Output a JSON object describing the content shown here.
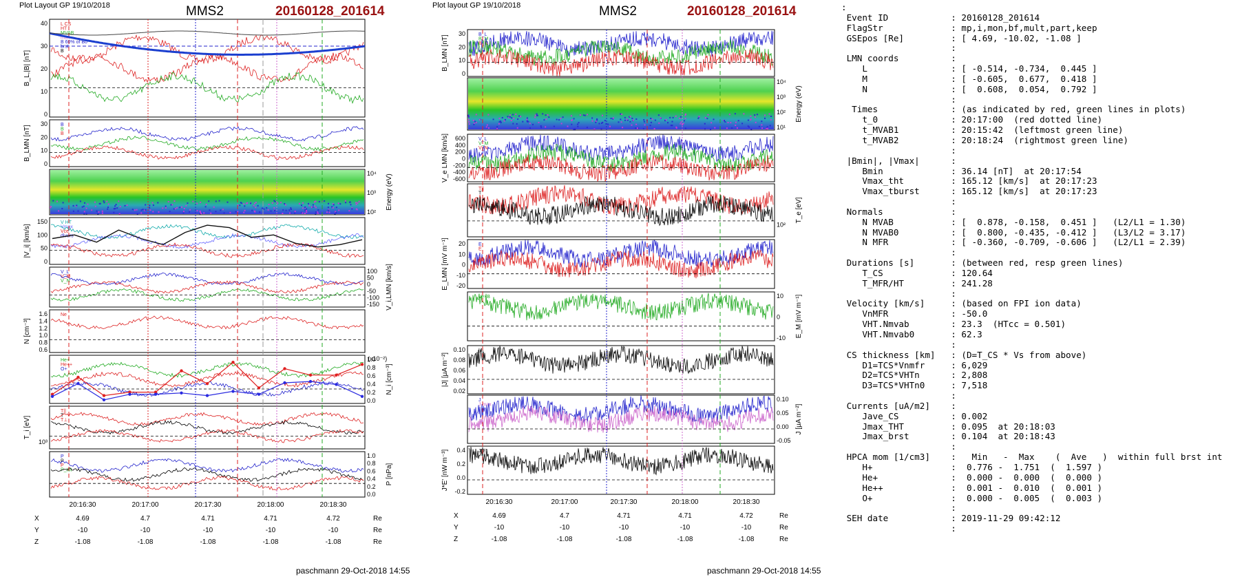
{
  "left_figure": {
    "layout_label": "Plot Layout GP 19/10/2018",
    "spacecraft": "MMS2",
    "event": "20160128_201614",
    "footer": "paschmann 29-Oct-2018 14:55",
    "panels": [
      {
        "id": "b_total",
        "ylabel": "B_L,|B| [nT]",
        "yticks": [
          "0",
          "10",
          "20",
          "30",
          "40"
        ],
        "legend": [
          "L CS",
          "HT",
          "MVAB",
          "max",
          "B 60% of Bo",
          "brst",
          "B"
        ],
        "legend_colors": [
          "#d22",
          "#d22",
          "#2a2",
          "#c6c",
          "#22c",
          "#22c",
          "#000"
        ]
      },
      {
        "id": "b_lmn",
        "ylabel": "B_LMN [nT]",
        "yticks": [
          "0",
          "10",
          "20",
          "30"
        ],
        "legend": [
          "B",
          "B",
          "B"
        ],
        "legend_colors": [
          "#22c",
          "#2a2",
          "#d22"
        ]
      },
      {
        "id": "ion_spec",
        "ylabel_right": "Energy (eV)",
        "yticks_right": [
          "10²",
          "10³",
          "10⁴"
        ]
      },
      {
        "id": "vi_mag",
        "ylabel": "|V_i| [km/s]",
        "yticks": [
          "0",
          "50",
          "100",
          "150"
        ],
        "legend": [
          "V HT",
          "Vmax",
          "Vce",
          "divers"
        ],
        "legend_colors": [
          "#1aa",
          "#66f",
          "#d22",
          "#22c"
        ]
      },
      {
        "id": "vi_lmn",
        "ylabel_right": "V_i,LMN [km/s]",
        "yticks_right": [
          "-150",
          "-100",
          "-50",
          "0",
          "50",
          "100"
        ],
        "legend": [
          "V_L",
          "V_M",
          "V_N"
        ],
        "legend_colors": [
          "#22c",
          "#d22",
          "#2a2"
        ]
      },
      {
        "id": "density",
        "ylabel": "N [cm⁻³]",
        "yticks": [
          "0.6",
          "0.8",
          "1.0",
          "1.2",
          "1.4",
          "1.6"
        ],
        "legend": [
          "Ne"
        ],
        "legend_colors": [
          "#d22"
        ]
      },
      {
        "id": "hpca",
        "ylabel_right": "N_i [cm⁻³]",
        "yticks_right": [
          "0.0",
          "0.2",
          "0.4",
          "0.6",
          "0.8",
          "1.0"
        ],
        "ymult": "(x10⁻²)",
        "legend": [
          "He+",
          "He++",
          "O+"
        ],
        "legend_colors": [
          "#2a2",
          "#d22",
          "#22c"
        ]
      },
      {
        "id": "ti",
        "ylabel": "T_i [eV]",
        "yticks": [
          "10³"
        ],
        "legend": [
          "T||",
          "T",
          "T⊥"
        ],
        "legend_colors": [
          "#d22",
          "#000",
          "#d22"
        ]
      },
      {
        "id": "pressure",
        "ylabel_right": "P [nPa]",
        "yticks_right": [
          "0.0",
          "0.2",
          "0.4",
          "0.6",
          "0.8",
          "1.0"
        ],
        "legend": [
          "P",
          "P",
          "P",
          "P_tot"
        ],
        "legend_colors": [
          "#22c",
          "#000",
          "#d22",
          "#2a2"
        ]
      }
    ],
    "time_ticks": [
      "20:16:30",
      "20:17:00",
      "20:17:30",
      "20:18:00",
      "20:18:30"
    ],
    "position_rows": [
      {
        "label": "X",
        "values": [
          "4.69",
          "4.7",
          "4.71",
          "4.71",
          "4.72"
        ],
        "unit": "Re"
      },
      {
        "label": "Y",
        "values": [
          "-10",
          "-10",
          "-10",
          "-10",
          "-10"
        ],
        "unit": "Re"
      },
      {
        "label": "Z",
        "values": [
          "-1.08",
          "-1.08",
          "-1.08",
          "-1.08",
          "-1.08"
        ],
        "unit": "Re"
      }
    ]
  },
  "right_figure": {
    "layout_label": "Plot layout GP 19/10/2018",
    "spacecraft": "MMS2",
    "event": "20160128_201614",
    "footer": "paschmann 29-Oct-2018 14:55",
    "panels": [
      {
        "id": "b_lmn",
        "ylabel": "B_LMN [nT]",
        "yticks": [
          "0",
          "10",
          "20",
          "30"
        ],
        "legend": [
          "B_L",
          "B_M",
          "B_N"
        ],
        "legend_colors": [
          "#22c",
          "#2a2",
          "#d22"
        ]
      },
      {
        "id": "e_spec",
        "ylabel_right": "Energy (eV)",
        "yticks_right": [
          "10¹",
          "10²",
          "10³",
          "10⁴"
        ]
      },
      {
        "id": "ve_lmn",
        "ylabel": "V_e LMN [km/s]",
        "yticks": [
          "-600",
          "-400",
          "-200",
          "0",
          "200",
          "400",
          "600"
        ],
        "legend": [
          "V_L",
          "V_M",
          "V_N"
        ],
        "legend_colors": [
          "#22c",
          "#2a2",
          "#d22"
        ]
      },
      {
        "id": "te",
        "ylabel_right": "T_e [eV]",
        "yticks_right": [
          "10²"
        ],
        "legend": [
          "T||",
          "T"
        ],
        "legend_colors": [
          "#d22",
          "#000"
        ]
      },
      {
        "id": "e_lmn",
        "ylabel": "E_LMN [mV m⁻¹]",
        "yticks": [
          "-20",
          "-10",
          "0",
          "10",
          "20"
        ],
        "legend": [
          "E",
          "E"
        ],
        "legend_colors": [
          "#22c",
          "#d22"
        ]
      },
      {
        "id": "em",
        "ylabel_right": "E_M [mV m⁻¹]",
        "yticks_right": [
          "-10",
          "0",
          "10"
        ],
        "legend": [
          "Ve×B"
        ],
        "legend_colors": [
          "#2a2"
        ]
      },
      {
        "id": "j_mag",
        "ylabel": "|J| [μA m⁻²]",
        "yticks": [
          "0.02",
          "0.04",
          "0.06",
          "0.08",
          "0.10"
        ],
        "legend": [
          "|J|"
        ],
        "legend_colors": [
          "#000"
        ]
      },
      {
        "id": "j_lmn",
        "ylabel_right": "J [μA m⁻²]",
        "yticks_right": [
          "-0.05",
          "0.00",
          "0.05",
          "0.10"
        ],
        "legend": [
          "J",
          "J max"
        ],
        "legend_colors": [
          "#22c",
          "#c6c"
        ]
      },
      {
        "id": "je",
        "ylabel": "J*E' [nW m⁻³]",
        "yticks": [
          "-0.2",
          "0.0",
          "0.2",
          "0.4"
        ],
        "legend": [
          "J*E'"
        ],
        "legend_colors": [
          "#000"
        ]
      }
    ],
    "time_ticks": [
      "20:16:30",
      "20:17:00",
      "20:17:30",
      "20:18:00",
      "20:18:30"
    ],
    "position_rows": [
      {
        "label": "X",
        "values": [
          "4.69",
          "4.7",
          "4.71",
          "4.71",
          "4.72"
        ],
        "unit": "Re"
      },
      {
        "label": "Y",
        "values": [
          "-10",
          "-10",
          "-10",
          "-10",
          "-10"
        ],
        "unit": "Re"
      },
      {
        "label": "Z",
        "values": [
          "-1.08",
          "-1.08",
          "-1.08",
          "-1.08",
          "-1.08"
        ],
        "unit": "Re"
      }
    ]
  },
  "chart_data": [
    {
      "type": "line",
      "title": "MMS2 20160128_201614",
      "panel": "left |V_i|",
      "ylabel": "|V_i| [km/s]",
      "ylim": [
        0,
        170
      ],
      "x": [
        "20:16:22",
        "20:16:30",
        "20:16:40",
        "20:16:50",
        "20:17:00",
        "20:17:10",
        "20:17:20",
        "20:17:30",
        "20:17:40",
        "20:17:50",
        "20:18:00",
        "20:18:10",
        "20:18:20",
        "20:18:30",
        "20:18:40"
      ],
      "series": [
        {
          "name": "|V_i|",
          "values": [
            95,
            110,
            80,
            130,
            95,
            70,
            120,
            150,
            140,
            100,
            110,
            75,
            60,
            70,
            90
          ]
        }
      ]
    },
    {
      "type": "line",
      "panel": "left HPCA N_i (x10⁻²)",
      "ylabel": "N_i [cm⁻³]",
      "ylim": [
        0,
        1.0
      ],
      "x": [
        "20:16:20",
        "20:16:30",
        "20:16:40",
        "20:16:50",
        "20:17:00",
        "20:17:10",
        "20:17:20",
        "20:17:30",
        "20:17:40",
        "20:17:50",
        "20:18:00",
        "20:18:10",
        "20:18:20"
      ],
      "series": [
        {
          "name": "He++",
          "values": [
            0.15,
            0.55,
            0.12,
            0.2,
            0.2,
            0.7,
            0.4,
            0.9,
            0.3,
            0.75,
            0.6,
            0.6,
            0.85
          ]
        },
        {
          "name": "O+",
          "values": [
            0.1,
            0.4,
            0.02,
            0.15,
            0.15,
            0.18,
            0.12,
            0.22,
            0.15,
            0.42,
            0.45,
            0.38,
            0.1
          ]
        }
      ]
    }
  ],
  "summary": {
    "lines": [
      ":",
      " Event ID            : 20160128_201614",
      " FlagStr             : mp,i,mon,bf,mult,part,keep",
      " GSEpos [Re]         : [ 4.69, -10.02, -1.08 ]",
      "                     :",
      " LMN coords          :",
      "    L                : [ -0.514, -0.734,  0.445 ]",
      "    M                : [ -0.605,  0.677,  0.418 ]",
      "    N                : [  0.608,  0.054,  0.792 ]",
      "                     :",
      "  Times              : (as indicated by red, green lines in plots)",
      "    t_0              : 20:17:00  (red dotted line)",
      "    t_MVAB1          : 20:15:42  (leftmost green line)",
      "    t_MVAB2          : 20:18:24  (rightmost green line)",
      "                     :",
      " |Bmin|, |Vmax|      :",
      "    Bmin             : 36.14 [nT]  at 20:17:54",
      "    Vmax_tht         : 165.12 [km/s]  at 20:17:23",
      "    Vmax_tburst      : 165.12 [km/s]  at 20:17:23",
      "                     :",
      " Normals             :",
      "    N MVAB           : [  0.878, -0.158,  0.451 ]   (L2/L1 = 1.30)",
      "    N MVAB0          : [  0.800, -0.435, -0.412 ]   (L3/L2 = 3.17)",
      "    N MFR            : [ -0.360, -0.709, -0.606 ]   (L2/L1 = 2.39)",
      "                     :",
      " Durations [s]       : (between red, resp green lines)",
      "    T_CS             : 120.64",
      "    T_MFR/HT         : 241.28",
      "                     :",
      " Velocity [km/s]     : (based on FPI ion data)",
      "    VnMFR            : -50.0",
      "    VHT.Nmvab        : 23.3  (HTcc = 0.501)",
      "    VHT.Nmvab0       : 62.3",
      "                     :",
      " CS thickness [km]   : (D=T_CS * Vs from above)",
      "    D1=TCS*Vnmfr     : 6,029",
      "    D2=TCS*VHTn      : 2,808",
      "    D3=TCS*VHTn0     : 7,518",
      "                     :",
      " Currents [uA/m2]    :",
      "    Jave_CS          : 0.002",
      "    Jmax_THT         : 0.095  at 20:18:03",
      "    Jmax_brst        : 0.104  at 20:18:43",
      "                     :",
      " HPCA mom [1/cm3]    :   Min   -  Max    (  Ave   )  within full brst int",
      "    H+               :  0.776 -  1.751  (  1.597 )",
      "    He+              :  0.000 -  0.000  (  0.000 )",
      "    He++             :  0.001 -  0.010  (  0.001 )",
      "    O+               :  0.000 -  0.005  (  0.003 )",
      "                     :",
      " SEH date            : 2019-11-29 09:42:12",
      "                     :"
    ]
  }
}
